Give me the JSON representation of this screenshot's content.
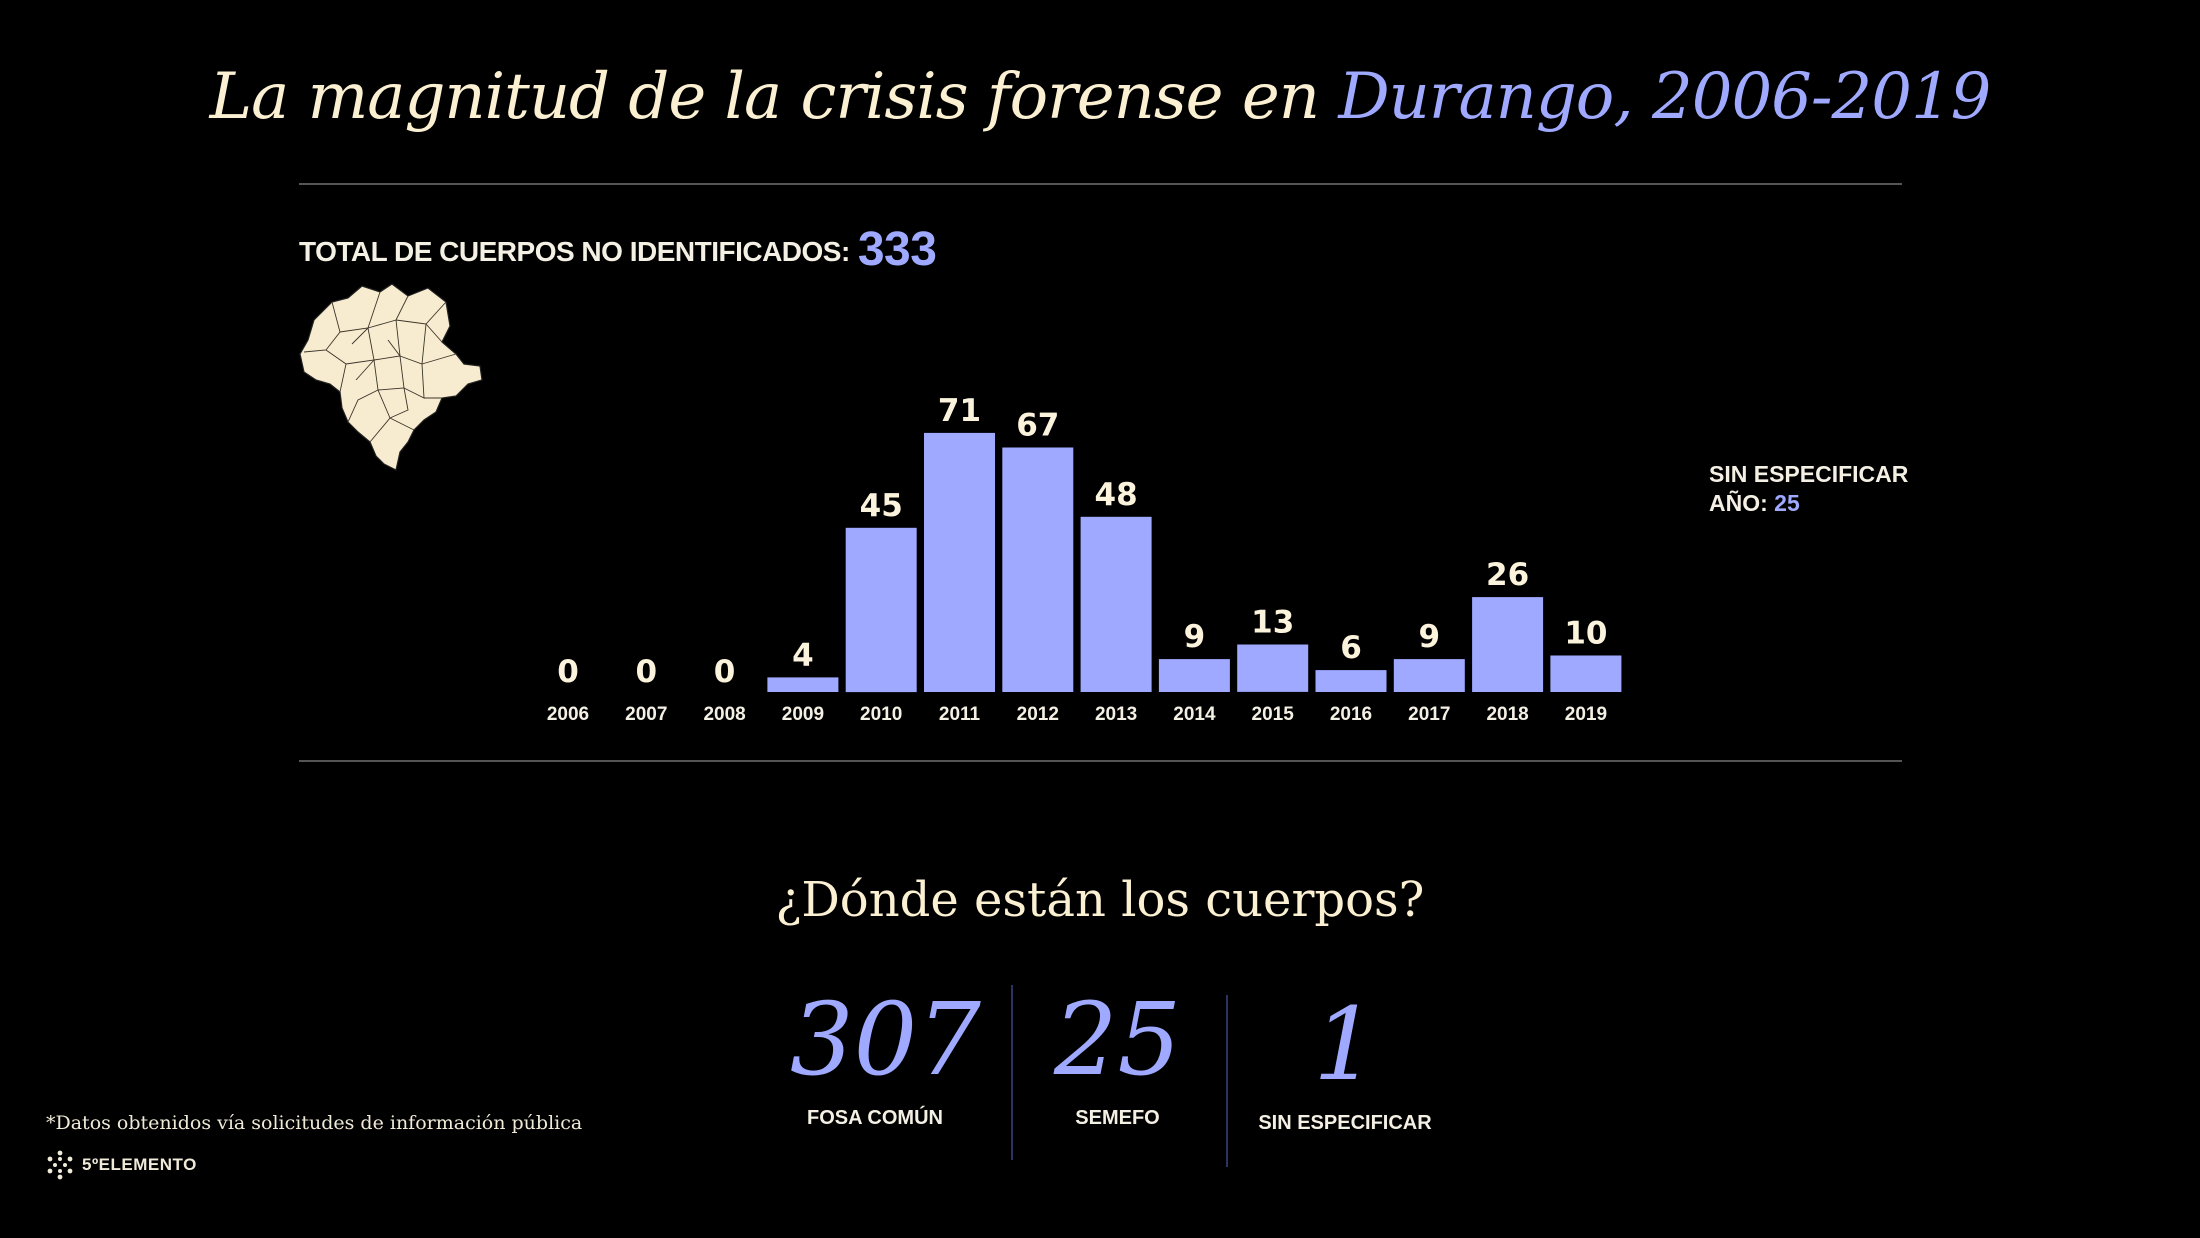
{
  "title": {
    "main": "La magnitud de la crisis forense en ",
    "accent": "Durango, 2006-2019"
  },
  "total": {
    "label": "TOTAL DE CUERPOS NO IDENTIFICADOS:",
    "value": "333"
  },
  "unspecified_year": {
    "line1": "SIN ESPECIFICAR",
    "line2": "AÑO:",
    "value": "25"
  },
  "chart_data": {
    "type": "bar",
    "categories": [
      "2006",
      "2007",
      "2008",
      "2009",
      "2010",
      "2011",
      "2012",
      "2013",
      "2014",
      "2015",
      "2016",
      "2017",
      "2018",
      "2019"
    ],
    "values": [
      0,
      0,
      0,
      4,
      45,
      71,
      67,
      48,
      9,
      13,
      6,
      9,
      26,
      10
    ],
    "title": "",
    "xlabel": "",
    "ylabel": ""
  },
  "subtitle": "¿Dónde están los cuerpos?",
  "stats": [
    {
      "value": "307",
      "label": "FOSA COMÚN"
    },
    {
      "value": "25",
      "label": "SEMEFO"
    },
    {
      "value": "1",
      "label": "SIN ESPECIFICAR"
    }
  ],
  "footnote": "*Datos obtenidos vía solicitudes de información pública",
  "logo_text": "5ºELEMENTO",
  "colors": {
    "accent": "#9ea9ff",
    "text": "#fbf0d2",
    "background": "#000000",
    "map_fill": "#f8ecd0"
  },
  "icons": {
    "map": "durango-map-icon",
    "logo": "hexagon-dots-logo-icon"
  }
}
